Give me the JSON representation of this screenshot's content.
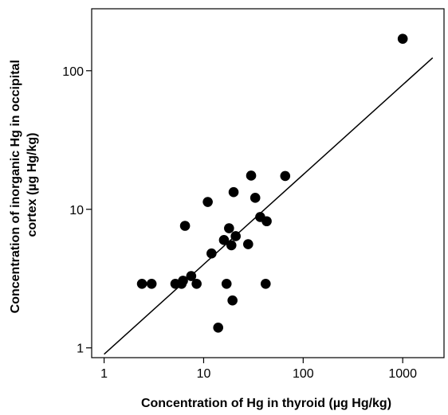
{
  "chart_data": {
    "type": "scatter",
    "title": "",
    "xlabel": "Concentration of Hg in thyroid (µg Hg/kg)",
    "ylabel_lines": [
      "Concentration of inorganic Hg in occipital",
      "cortex (µg Hg/kg)"
    ],
    "x_scale": "log",
    "y_scale": "log",
    "xlim": [
      0.75,
      2600
    ],
    "ylim": [
      0.85,
      280
    ],
    "x_ticks": [
      {
        "value": 1,
        "label": "1"
      },
      {
        "value": 10,
        "label": "10"
      },
      {
        "value": 100,
        "label": "100"
      },
      {
        "value": 1000,
        "label": "1000"
      }
    ],
    "y_ticks": [
      {
        "value": 1,
        "label": "1"
      },
      {
        "value": 10,
        "label": "10"
      },
      {
        "value": 100,
        "label": "100"
      }
    ],
    "grid": false,
    "legend": "none",
    "marker_color": "#000000",
    "series": [
      {
        "points": [
          {
            "x": 2.4,
            "y": 2.9
          },
          {
            "x": 3.0,
            "y": 2.9
          },
          {
            "x": 5.2,
            "y": 2.9
          },
          {
            "x": 6.0,
            "y": 2.9
          },
          {
            "x": 6.2,
            "y": 3.05
          },
          {
            "x": 7.5,
            "y": 3.3
          },
          {
            "x": 8.5,
            "y": 2.9
          },
          {
            "x": 6.5,
            "y": 7.6
          },
          {
            "x": 11.0,
            "y": 11.3
          },
          {
            "x": 12.0,
            "y": 4.8
          },
          {
            "x": 14.0,
            "y": 1.4
          },
          {
            "x": 16.0,
            "y": 6.0
          },
          {
            "x": 17.0,
            "y": 2.9
          },
          {
            "x": 18.0,
            "y": 7.3
          },
          {
            "x": 19.0,
            "y": 5.5
          },
          {
            "x": 19.5,
            "y": 2.2
          },
          {
            "x": 20.0,
            "y": 13.3
          },
          {
            "x": 21.0,
            "y": 6.4
          },
          {
            "x": 28.0,
            "y": 5.6
          },
          {
            "x": 30.0,
            "y": 17.5
          },
          {
            "x": 33.0,
            "y": 12.1
          },
          {
            "x": 37.0,
            "y": 8.8
          },
          {
            "x": 42.0,
            "y": 2.9
          },
          {
            "x": 43.0,
            "y": 8.2
          },
          {
            "x": 66.0,
            "y": 17.4
          },
          {
            "x": 1000.0,
            "y": 170.0
          }
        ]
      }
    ],
    "fit_line": {
      "x": [
        1,
        2000
      ],
      "y": [
        0.9,
        124
      ]
    }
  }
}
